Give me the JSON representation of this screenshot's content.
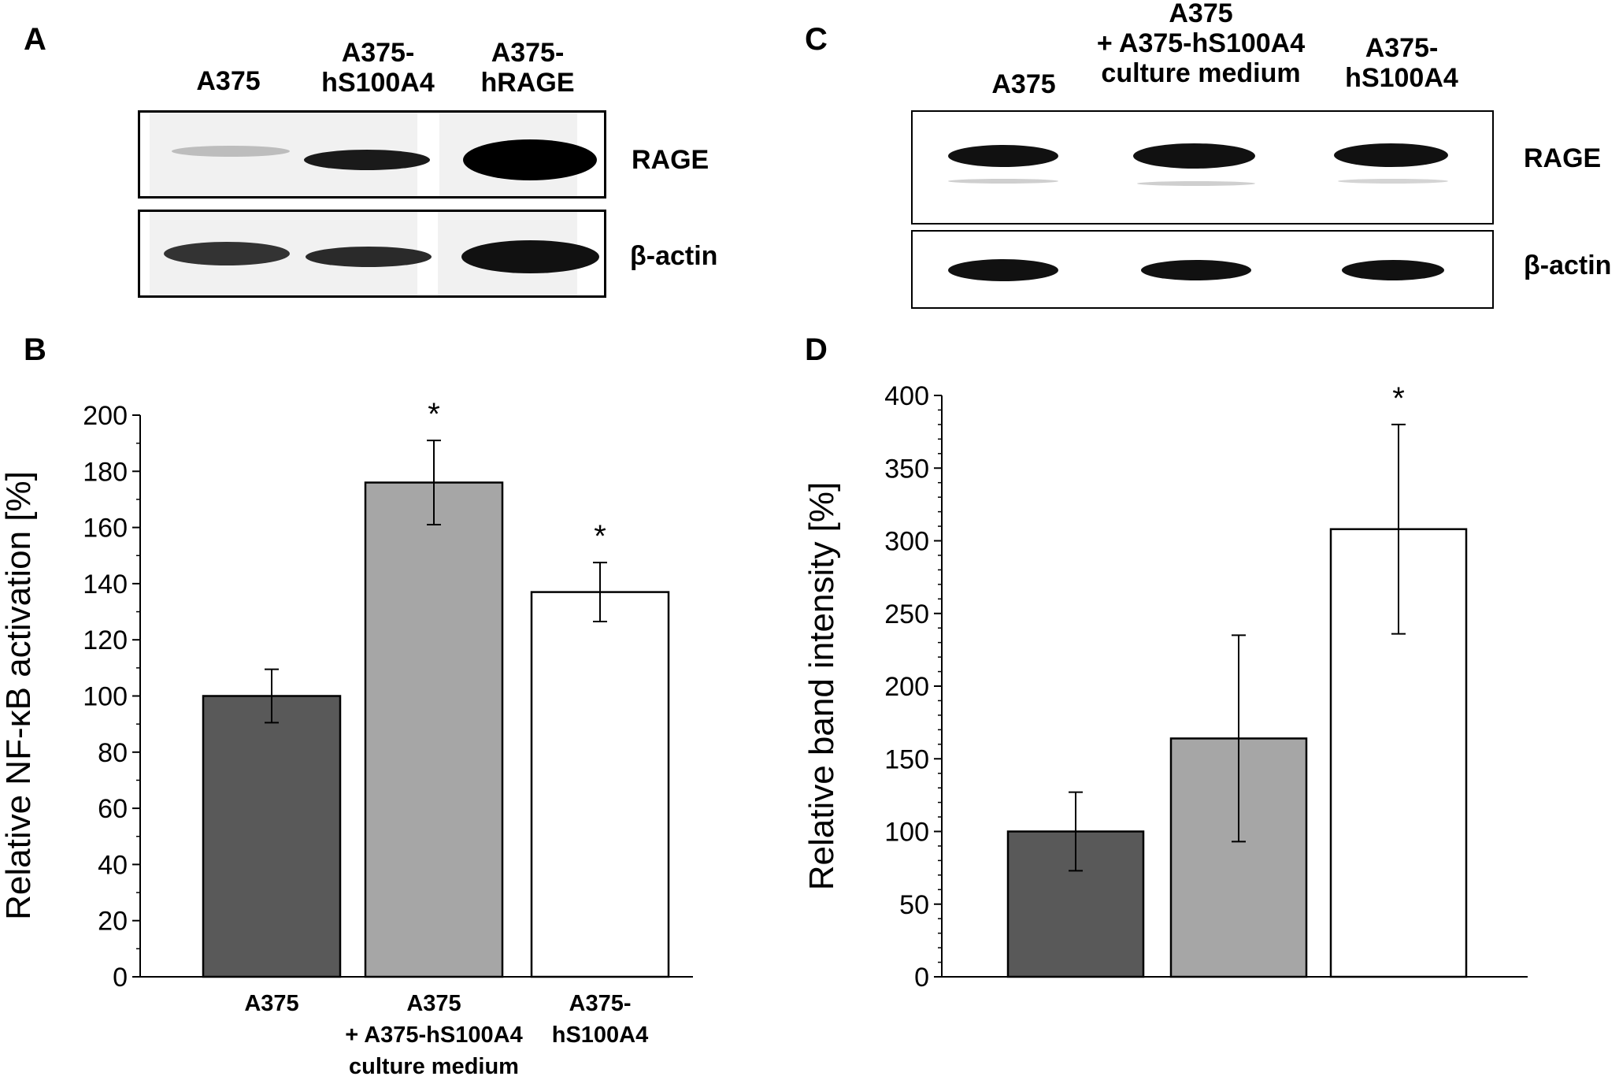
{
  "panels": {
    "A": {
      "letter": "A",
      "lanes": [
        "A375",
        "A375-\nhS100A4",
        "A375-\nhRAGE"
      ],
      "blots": [
        "RAGE",
        "β-actin"
      ]
    },
    "C": {
      "letter": "C",
      "lanes": [
        "A375",
        "A375\n+ A375-hS100A4\nculture medium",
        "A375-\nhS100A4"
      ],
      "blots": [
        "RAGE",
        "β-actin"
      ]
    },
    "B": {
      "letter": "B"
    },
    "D": {
      "letter": "D"
    }
  },
  "chart_data": [
    {
      "panel": "B",
      "type": "bar",
      "categories": [
        "A375",
        "A375\n+ A375-hS100A4\nculture medium",
        "A375-\nhS100A4"
      ],
      "values": [
        100,
        176,
        137
      ],
      "errors": [
        9.5,
        15,
        10.5
      ],
      "significance": [
        "",
        "*",
        "*"
      ],
      "colors": [
        "#595959",
        "#a6a6a6",
        "#ffffff"
      ],
      "ylabel": "Relative NF-κB activation [%]",
      "xlabel": "",
      "ylim": [
        0,
        200
      ],
      "yticks": [
        0,
        20,
        40,
        60,
        80,
        100,
        120,
        140,
        160,
        180,
        200
      ],
      "grid": false
    },
    {
      "panel": "D",
      "type": "bar",
      "categories": [
        "",
        "",
        ""
      ],
      "values": [
        100,
        164,
        308
      ],
      "errors": [
        27,
        71,
        72
      ],
      "significance": [
        "",
        "",
        "*"
      ],
      "colors": [
        "#595959",
        "#a6a6a6",
        "#ffffff"
      ],
      "ylabel": "Relative band intensity [%]",
      "xlabel": "",
      "ylim": [
        0,
        400
      ],
      "yticks": [
        0,
        50,
        100,
        150,
        200,
        250,
        300,
        350,
        400
      ],
      "grid": false
    }
  ]
}
